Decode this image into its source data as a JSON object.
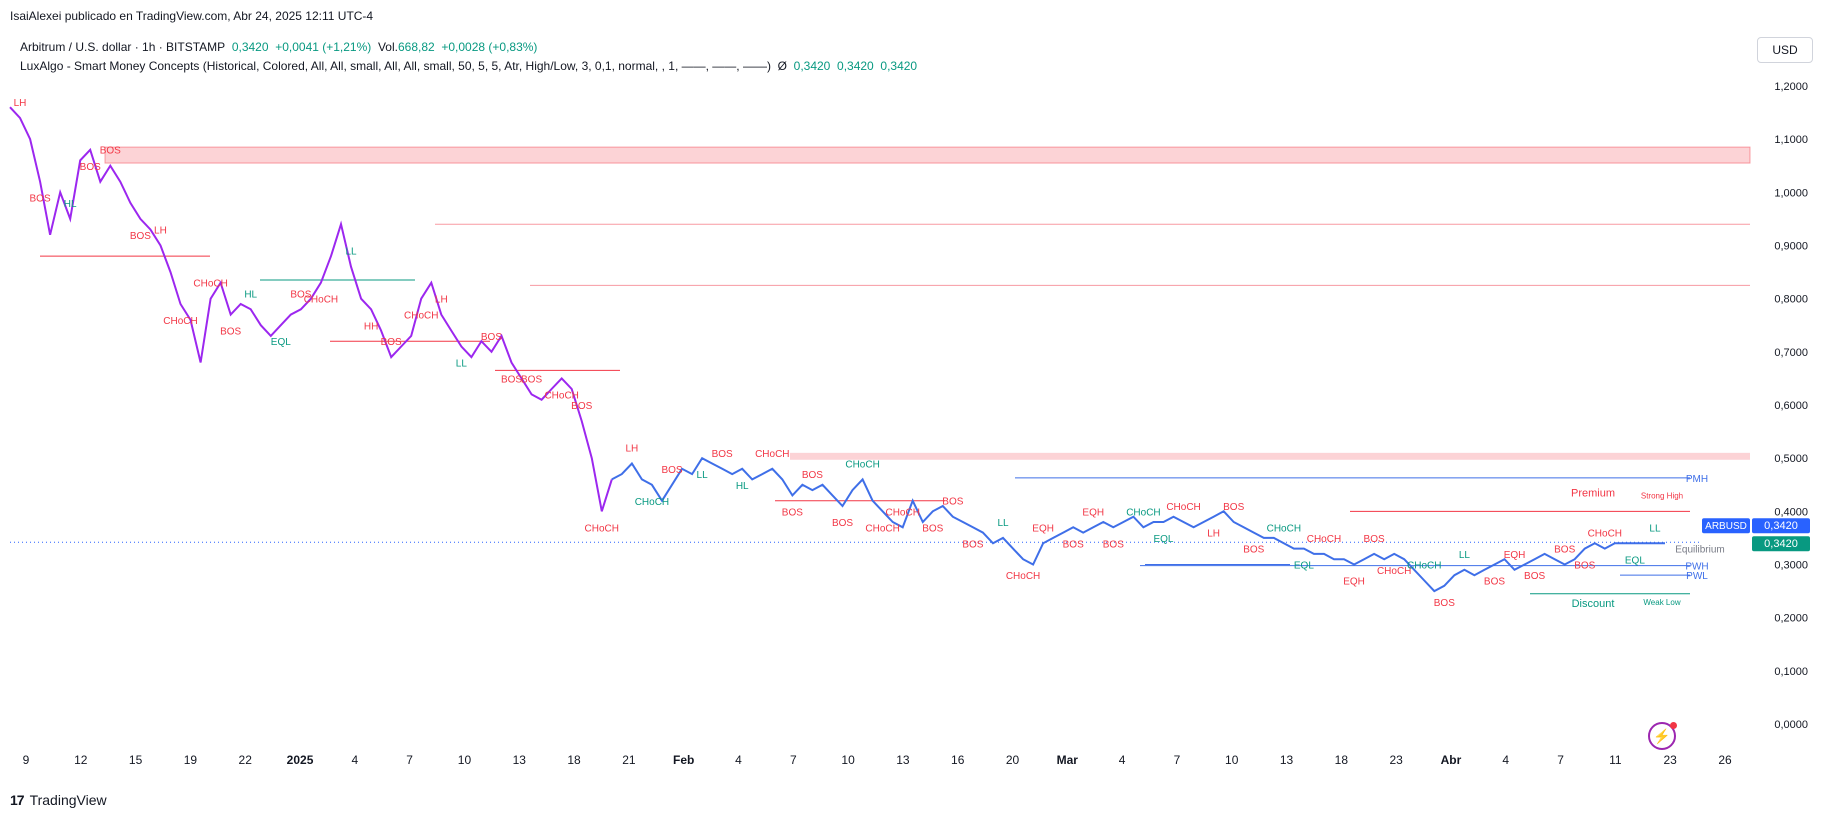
{
  "header": {
    "publisher": "IsaiAlexei publicado en TradingView.com, Abr 24, 2025 12:11 UTC-4"
  },
  "legend": {
    "symbol_line": "Arbitrum / U.S. dollar · 1h · BITSTAMP",
    "price": "0,3420",
    "change": "+0,0041 (+1,21%)",
    "vol_label": "Vol.",
    "vol_value": "668,82",
    "vol_change": "+0,0028 (+0,83%)",
    "indicator": "LuxAlgo - Smart Money Concepts (Historical, Colored, All, All, small, All, All, small, 50, 5, 5, Atr, High/Low, 3, 0,1, normal, , 1, ——, ——, ——)",
    "indicator_sym": "Ø",
    "ind_v1": "0,3420",
    "ind_v2": "0,3420",
    "ind_v3": "0,3420"
  },
  "currency_button": "USD",
  "footer": {
    "brand": "TradingView",
    "logo_mark": "17"
  },
  "colors": {
    "purple": "#9c27ef",
    "blue": "#3f6fe8",
    "red_label": "#f23645",
    "teal_label": "#089981",
    "zone_red": "rgba(242,54,69,0.22)",
    "price_tag": "#2962ff"
  },
  "chart_data": {
    "type": "line",
    "title": "Arbitrum / U.S. dollar · 1h · BITSTAMP",
    "ylim": [
      -0.03,
      1.23
    ],
    "y_ticks": [
      "1,2000",
      "1,1000",
      "1,0000",
      "0,9000",
      "0,8000",
      "0,7000",
      "0,6000",
      "0,5000",
      "0,4000",
      "0,3000",
      "0,2000",
      "0,1000",
      "0,0000"
    ],
    "x_ticks": [
      "9",
      "12",
      "15",
      "19",
      "22",
      "2025",
      "4",
      "7",
      "10",
      "13",
      "18",
      "21",
      "Feb",
      "4",
      "7",
      "10",
      "13",
      "16",
      "20",
      "Mar",
      "4",
      "7",
      "10",
      "13",
      "18",
      "23",
      "Abr",
      "4",
      "7",
      "11",
      "23",
      "26"
    ],
    "last_price_label": "ARBUSD",
    "last_price": "0,3420",
    "last_price_2": "0,3420",
    "series": [
      {
        "name": "ARBUSD",
        "x": [
          0,
          3,
          6,
          9,
          12,
          15,
          18,
          21,
          24,
          27,
          30,
          33,
          36,
          39,
          42,
          45,
          48,
          51,
          54,
          57,
          60,
          63,
          66,
          69,
          72,
          75,
          78,
          81,
          84,
          87,
          90,
          93,
          96,
          99,
          102,
          105,
          108,
          111,
          114,
          117,
          120,
          123,
          126,
          129,
          132,
          135,
          138,
          141,
          144,
          147,
          150,
          153,
          156,
          159,
          162,
          165,
          168,
          171,
          174,
          177,
          180,
          183,
          186,
          189,
          192,
          195,
          198,
          201,
          204,
          207,
          210,
          213,
          216,
          219,
          222,
          225,
          228,
          231,
          234,
          237,
          240,
          243,
          246,
          249,
          252,
          255,
          258,
          261,
          264,
          267,
          270,
          273,
          276,
          279,
          282,
          285,
          288,
          291,
          294,
          297,
          300,
          303,
          306,
          309,
          312,
          315,
          318,
          321,
          324,
          327,
          330,
          333,
          336,
          339,
          342,
          345,
          348,
          351,
          354,
          357,
          360,
          363,
          366,
          369,
          372,
          375,
          378,
          381,
          384,
          387,
          390,
          393,
          396,
          399,
          402,
          405,
          408,
          411,
          414,
          417,
          420,
          423,
          426,
          429,
          432,
          435,
          438,
          441,
          444,
          447,
          450,
          453,
          456,
          459,
          462,
          465,
          468,
          471,
          474,
          477,
          480,
          483,
          486,
          489,
          492,
          495
        ],
        "values": [
          1.16,
          1.14,
          1.1,
          1.02,
          0.92,
          1.0,
          0.95,
          1.06,
          1.08,
          1.02,
          1.05,
          1.02,
          0.98,
          0.95,
          0.93,
          0.9,
          0.85,
          0.79,
          0.76,
          0.68,
          0.8,
          0.83,
          0.77,
          0.79,
          0.78,
          0.75,
          0.73,
          0.75,
          0.77,
          0.78,
          0.8,
          0.83,
          0.88,
          0.94,
          0.86,
          0.8,
          0.78,
          0.74,
          0.69,
          0.71,
          0.73,
          0.8,
          0.83,
          0.77,
          0.74,
          0.71,
          0.69,
          0.72,
          0.7,
          0.73,
          0.68,
          0.65,
          0.62,
          0.61,
          0.63,
          0.65,
          0.63,
          0.57,
          0.5,
          0.4,
          0.46,
          0.47,
          0.49,
          0.46,
          0.45,
          0.42,
          0.45,
          0.48,
          0.47,
          0.5,
          0.49,
          0.48,
          0.47,
          0.48,
          0.46,
          0.47,
          0.48,
          0.46,
          0.43,
          0.45,
          0.44,
          0.45,
          0.43,
          0.41,
          0.44,
          0.46,
          0.42,
          0.4,
          0.38,
          0.37,
          0.42,
          0.38,
          0.4,
          0.41,
          0.39,
          0.38,
          0.37,
          0.36,
          0.34,
          0.35,
          0.33,
          0.31,
          0.3,
          0.34,
          0.35,
          0.36,
          0.37,
          0.36,
          0.37,
          0.38,
          0.37,
          0.38,
          0.39,
          0.37,
          0.38,
          0.38,
          0.39,
          0.38,
          0.37,
          0.38,
          0.39,
          0.4,
          0.38,
          0.37,
          0.36,
          0.35,
          0.35,
          0.34,
          0.33,
          0.33,
          0.32,
          0.32,
          0.31,
          0.31,
          0.3,
          0.31,
          0.32,
          0.31,
          0.32,
          0.31,
          0.29,
          0.27,
          0.25,
          0.26,
          0.28,
          0.29,
          0.28,
          0.29,
          0.3,
          0.31,
          0.29,
          0.3,
          0.31,
          0.32,
          0.31,
          0.3,
          0.31,
          0.33,
          0.34,
          0.33,
          0.34,
          0.34,
          0.34,
          0.34,
          0.34,
          0.34
        ],
        "purple_until_x": 180
      }
    ],
    "smc_labels": [
      "LH",
      "BOS",
      "HL",
      "BOS",
      "BOS",
      "BOS",
      "LH",
      "CHoCH",
      "CHoCH",
      "BOS",
      "HL",
      "EQL",
      "BOS",
      "CHoCH",
      "LL",
      "HH",
      "BOS",
      "CHoCH",
      "LH",
      "LL",
      "BOS",
      "BOS",
      "BOS",
      "CHoCH",
      "BOS",
      "CHoCH",
      "LH",
      "CHoCH",
      "BOS",
      "LL",
      "BOS",
      "HL",
      "CHoCH",
      "BOS",
      "BOS",
      "BOS",
      "CHoCH",
      "CHoCH",
      "CHoCH",
      "BOS",
      "BOS",
      "BOS",
      "LL",
      "CHoCH",
      "EQH",
      "BOS",
      "EQH",
      "BOS",
      "CHoCH",
      "EQL",
      "CHoCH",
      "LH",
      "BOS",
      "BOS",
      "CHoCH",
      "EQL",
      "CHoCH",
      "EQH",
      "BOS",
      "CHoCH",
      "CHoCH",
      "BOS",
      "LL",
      "BOS",
      "EQH",
      "BOS",
      "BOS",
      "BOS",
      "CHoCH",
      "EQL",
      "LL"
    ],
    "zone_labels": {
      "premium": "Premium",
      "equilibrium": "Equilibrium",
      "discount": "Discount",
      "strong_high": "Strong High",
      "weak_low": "Weak Low",
      "pmh": "PMH",
      "pwh": "PWH",
      "pwl": "PWL"
    }
  }
}
